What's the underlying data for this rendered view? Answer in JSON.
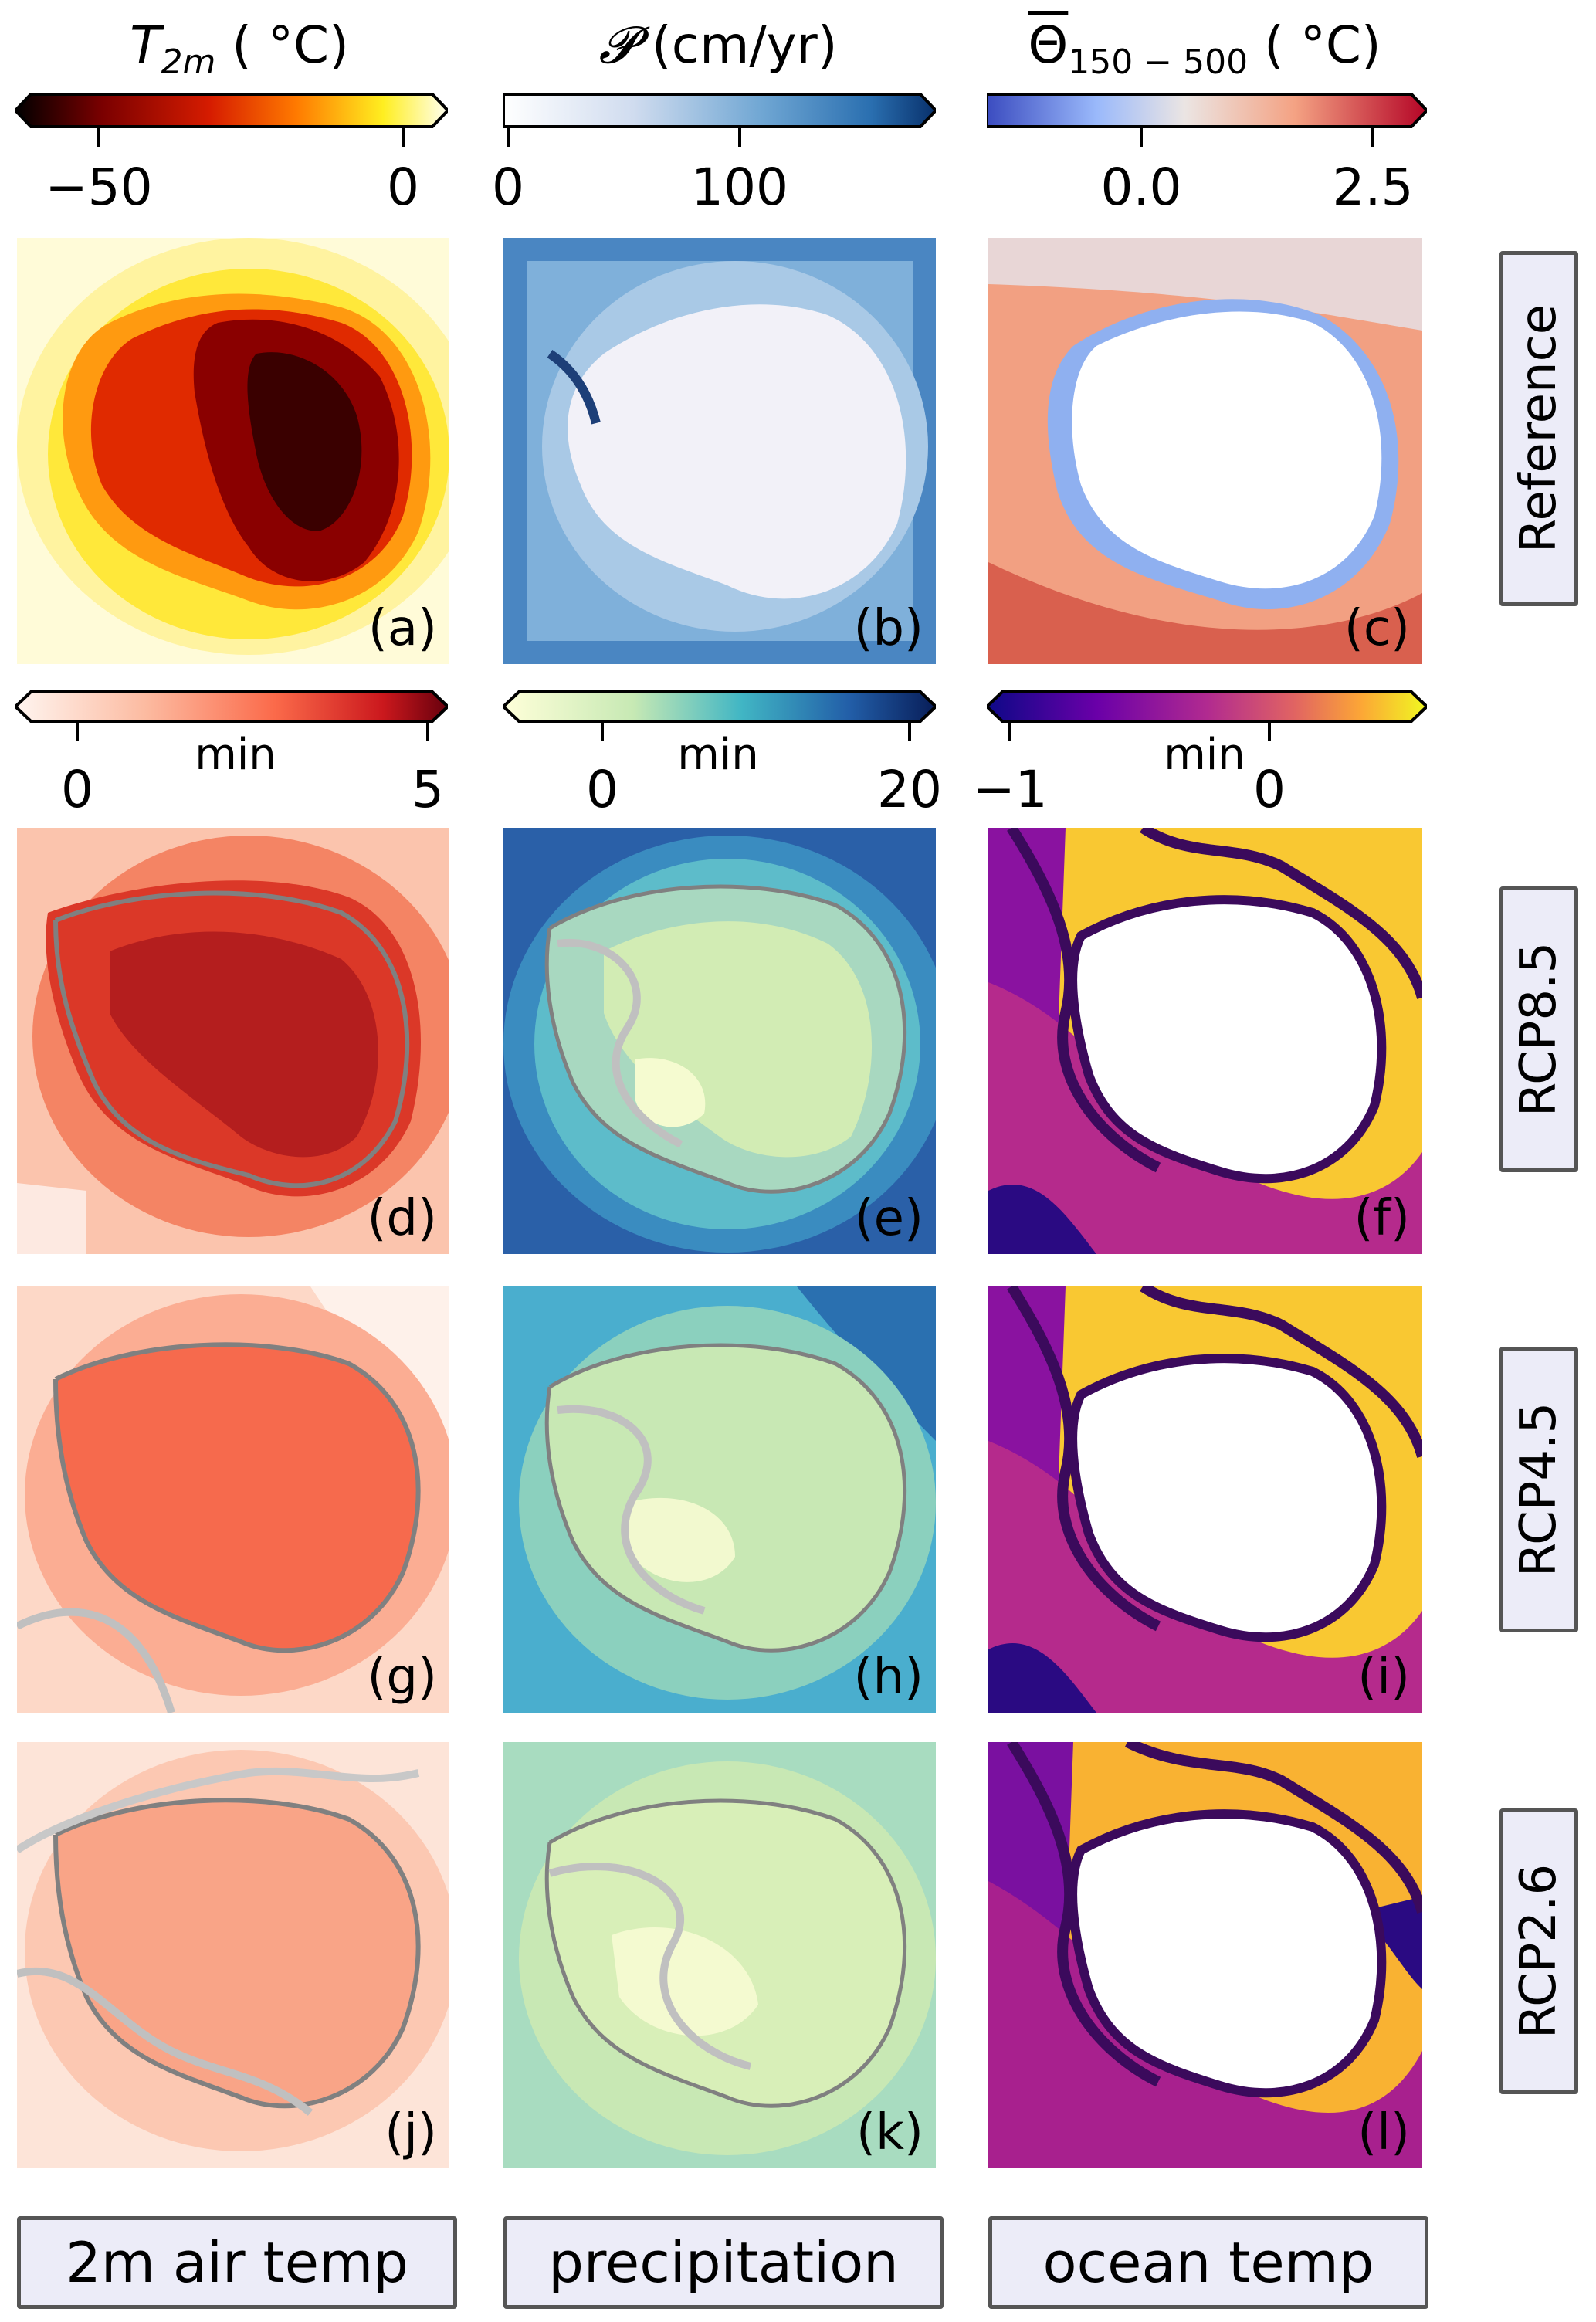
{
  "colorbars": {
    "top": [
      {
        "title_main": "T",
        "title_sub": "2m",
        "title_unit": " ( °C)",
        "ticks": [
          "−50",
          "0"
        ]
      },
      {
        "title_main": "𝓟",
        "title_sub": "",
        "title_unit": " (cm/yr)",
        "ticks": [
          "0",
          "100"
        ]
      },
      {
        "title_main": "Θ",
        "title_sub": "150 − 500",
        "title_unit": " ( °C)",
        "ticks": [
          "0.0",
          "2.5"
        ]
      }
    ],
    "bottom": [
      {
        "min_label": "min",
        "ticks": [
          "0",
          "5"
        ]
      },
      {
        "min_label": "min",
        "ticks": [
          "0",
          "20"
        ]
      },
      {
        "min_label": "min",
        "ticks": [
          "−1",
          "0"
        ]
      }
    ]
  },
  "panels": {
    "labels": [
      "(a)",
      "(b)",
      "(c)",
      "(d)",
      "(e)",
      "(f)",
      "(g)",
      "(h)",
      "(i)",
      "(j)",
      "(k)",
      "(l)"
    ]
  },
  "rows": [
    "Reference",
    "RCP8.5",
    "RCP4.5",
    "RCP2.6"
  ],
  "columns": [
    "2m air temp",
    "precipitation",
    "ocean temp"
  ],
  "colors": {
    "hot_map": [
      "#1a0000",
      "#8b0000",
      "#d42000",
      "#ff7000",
      "#ffe000",
      "#fffbe0"
    ],
    "blues_map": [
      "#f7f7fb",
      "#c6dbef",
      "#6baed6",
      "#2171b5",
      "#08306b"
    ],
    "coolwarm_map": [
      "#3b4cc0",
      "#aac7fd",
      "#f2e6e0",
      "#f4987a",
      "#b40426"
    ],
    "reds_map": [
      "#fff5f0",
      "#fcbba1",
      "#fb6a4a",
      "#cb181d",
      "#67000d"
    ],
    "ylgnbu_map": [
      "#ffffd9",
      "#c7e9b4",
      "#41b6c4",
      "#225ea8",
      "#081d58"
    ],
    "plasma_map": [
      "#0d0887",
      "#6a00a8",
      "#b12a90",
      "#e16462",
      "#fca636",
      "#f0f921"
    ]
  }
}
